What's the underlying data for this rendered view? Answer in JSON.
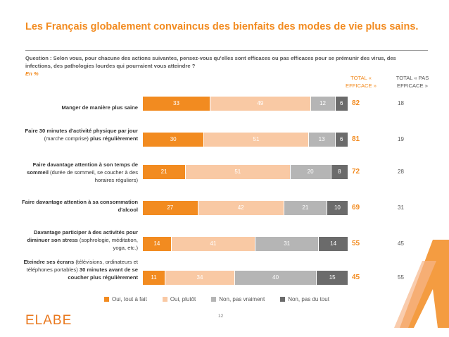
{
  "title": "Les Français globalement convaincus des bienfaits des modes de vie plus sains.",
  "question": "Question : Selon vous, pour chacune des actions suivantes, pensez-vous qu'elles sont efficaces ou pas efficaces pour se prémunir des virus, des infections, des pathologies lourdes qui pourraient vous atteindre ?",
  "unit_note": "En  %",
  "header_efficace": "TOTAL « EFFICACE »",
  "header_pas_efficace": "TOTAL « PAS EFFICACE »",
  "page_number": "12",
  "logo_text": "ELABE",
  "colors": {
    "accent": "#f28b20",
    "oui_tout_a_fait": "#f28b20",
    "oui_plutot": "#f9c9a4",
    "non_pas_vraiment": "#b5b5b5",
    "non_pas_du_tout": "#6b6b6b"
  },
  "rows": [
    {
      "label_bold": "Manger de manière plus saine",
      "label_rest": ""
    },
    {
      "label_bold": "Faire 30 minutes d'activité physique par jour",
      "label_rest": " (marche comprise) ",
      "label_bold2": "plus régulièrement"
    },
    {
      "label_bold": "Faire davantage attention à son temps de sommeil",
      "label_rest": " (durée de sommeil, se coucher à des horaires réguliers)"
    },
    {
      "label_bold": "Faire davantage attention à sa consommation d'alcool",
      "label_rest": ""
    },
    {
      "label_bold": "Davantage participer à des activités pour diminuer son stress",
      "label_rest": " (sophrologie, méditation, yoga, etc.)"
    },
    {
      "label_bold": "Eteindre ses écrans",
      "label_rest": " (télévisions, ordinateurs et téléphones portables) ",
      "label_bold2": "30 minutes avant de se coucher plus régulièrement"
    }
  ],
  "chart_data": {
    "type": "bar",
    "orientation": "horizontal-stacked-100",
    "categories": [
      "Manger de manière plus saine",
      "Faire 30 minutes d'activité physique par jour (marche comprise) plus régulièrement",
      "Faire davantage attention à son temps de sommeil (durée de sommeil, se coucher à des horaires réguliers)",
      "Faire davantage attention à sa consommation d'alcool",
      "Davantage participer à des activités pour diminuer son stress (sophrologie, méditation, yoga, etc.)",
      "Eteindre ses écrans (télévisions, ordinateurs et téléphones portables) 30 minutes avant de se coucher plus régulièrement"
    ],
    "series": [
      {
        "name": "Oui, tout à fait",
        "values": [
          33,
          30,
          21,
          27,
          14,
          11
        ]
      },
      {
        "name": "Oui, plutôt",
        "values": [
          49,
          51,
          51,
          42,
          41,
          34
        ]
      },
      {
        "name": "Non, pas vraiment",
        "values": [
          12,
          13,
          20,
          21,
          31,
          40
        ]
      },
      {
        "name": "Non, pas du tout",
        "values": [
          6,
          6,
          8,
          10,
          14,
          15
        ]
      }
    ],
    "total_efficace": [
      82,
      81,
      72,
      69,
      55,
      45
    ],
    "total_pas_efficace": [
      18,
      19,
      28,
      31,
      45,
      55
    ],
    "legend_position": "bottom"
  }
}
